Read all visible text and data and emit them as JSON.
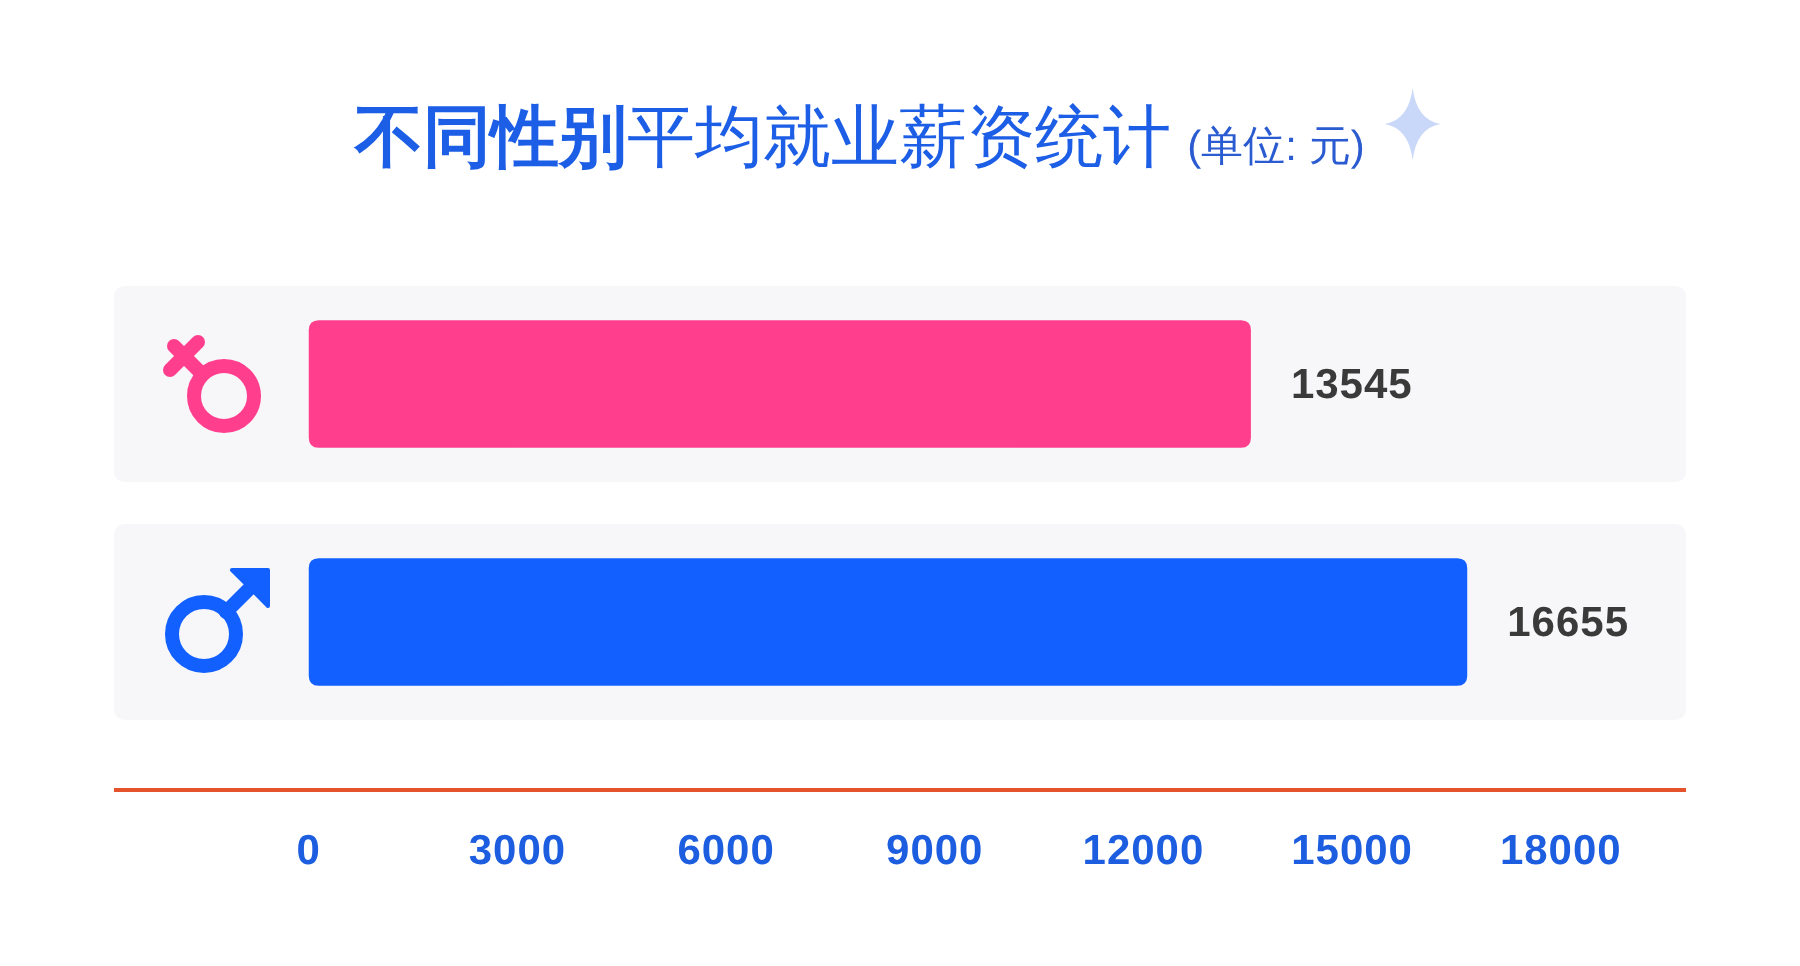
{
  "chart_data": {
    "type": "bar",
    "title": "**不同性别**平均就业薪资统计",
    "subtitle": "(单位: 元)",
    "orientation": "horizontal",
    "categories": [
      null,
      null
    ],
    "values": [
      13545,
      16655
    ],
    "colors": [
      "#ff3f8e",
      "#1160ff"
    ],
    "xlim": [
      -2800,
      19800
    ],
    "xticks": [
      0,
      3000,
      6000,
      9000,
      12000,
      15000,
      18000
    ],
    "data_labels": true,
    "tick_labels": "x",
    "bands": [
      {
        "axis": "x",
        "from": -2800,
        "to": 19800,
        "color": "#f7f7f9"
      },
      {
        "axis": "x",
        "from": -2800,
        "to": 19800,
        "color": "#f7f7f9"
      }
    ]
  }
}
